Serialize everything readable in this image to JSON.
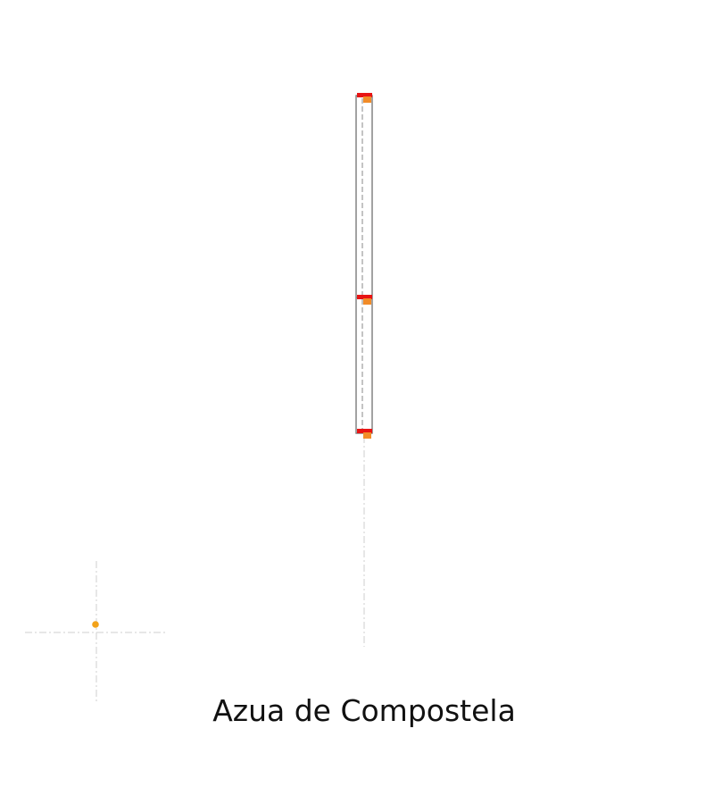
{
  "caption": "Azua de Compostela",
  "colors": {
    "background": "#ffffff",
    "bar_outline": "#7a7a7a",
    "bar_dashed": "#8a8a8a",
    "guide_lines": "#cfcfcf",
    "marker_red": "#e81414",
    "marker_orange": "#f28c28",
    "point_orange": "#f2a21a",
    "caption_text": "#111111"
  },
  "icons": {
    "point_marker": "orange-dot-icon",
    "segment_marker_red": "red-node-marker-icon",
    "segment_marker_orange": "orange-node-marker-icon"
  }
}
